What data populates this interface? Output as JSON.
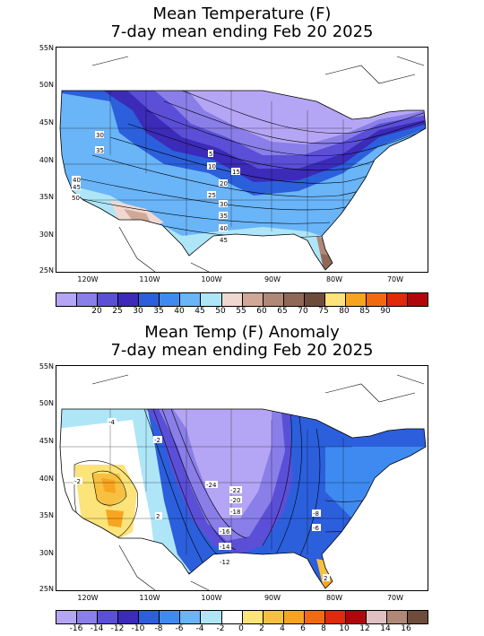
{
  "top_panel": {
    "title_line1": "Mean Temperature (F)",
    "title_line2": "7-day mean ending Feb 20 2025",
    "lat_labels": [
      "55N",
      "50N",
      "45N",
      "40N",
      "35N",
      "30N",
      "25N"
    ],
    "lon_labels": [
      "120W",
      "110W",
      "100W",
      "90W",
      "80W",
      "70W"
    ],
    "colorbar_colors": [
      "#b5a6f5",
      "#8a7ee8",
      "#5b4fd8",
      "#3b2bb8",
      "#2c5fdc",
      "#3f8af0",
      "#6ab4f8",
      "#aee6f8",
      "#f0d8d0",
      "#d0a898",
      "#b08878",
      "#906858",
      "#6e4c3c",
      "#fce37a",
      "#f7a520",
      "#f26a10",
      "#e02a0a",
      "#b0080a"
    ],
    "colorbar_labels": [
      "20",
      "25",
      "30",
      "35",
      "40",
      "45",
      "50",
      "55",
      "60",
      "65",
      "70",
      "75",
      "80",
      "85",
      "90"
    ],
    "contour_labels": [
      "30",
      "35",
      "40",
      "45",
      "50",
      "5",
      "10",
      "15",
      "20",
      "25",
      "30",
      "35",
      "40",
      "45"
    ]
  },
  "bottom_panel": {
    "title_line1": "Mean Temp (F) Anomaly",
    "title_line2": "7-day mean ending Feb 20 2025",
    "lat_labels": [
      "55N",
      "50N",
      "45N",
      "40N",
      "35N",
      "30N",
      "25N"
    ],
    "lon_labels": [
      "120W",
      "110W",
      "100W",
      "90W",
      "80W",
      "70W"
    ],
    "colorbar_colors": [
      "#b5a6f5",
      "#8a7ee8",
      "#5b4fd8",
      "#3b2bb8",
      "#2c5fdc",
      "#3f8af0",
      "#6ab4f8",
      "#aee6f8",
      "#ffffff",
      "#fce37a",
      "#f7c040",
      "#f7a520",
      "#f26a10",
      "#e02a0a",
      "#b0080a",
      "#e0c0c0",
      "#b08878",
      "#6e4c3c"
    ],
    "colorbar_labels": [
      "-16",
      "-14",
      "-12",
      "-10",
      "-8",
      "-6",
      "-4",
      "-2",
      "0",
      "2",
      "4",
      "6",
      "8",
      "10",
      "12",
      "14",
      "16"
    ],
    "contour_labels": [
      "-4",
      "-2",
      "-2",
      "2",
      "-24",
      "-22",
      "-20",
      "-18",
      "-16",
      "-14",
      "-12",
      "-8",
      "-6",
      "2"
    ]
  },
  "colors": {
    "ocean": "#ffffff",
    "outline": "#000000"
  }
}
